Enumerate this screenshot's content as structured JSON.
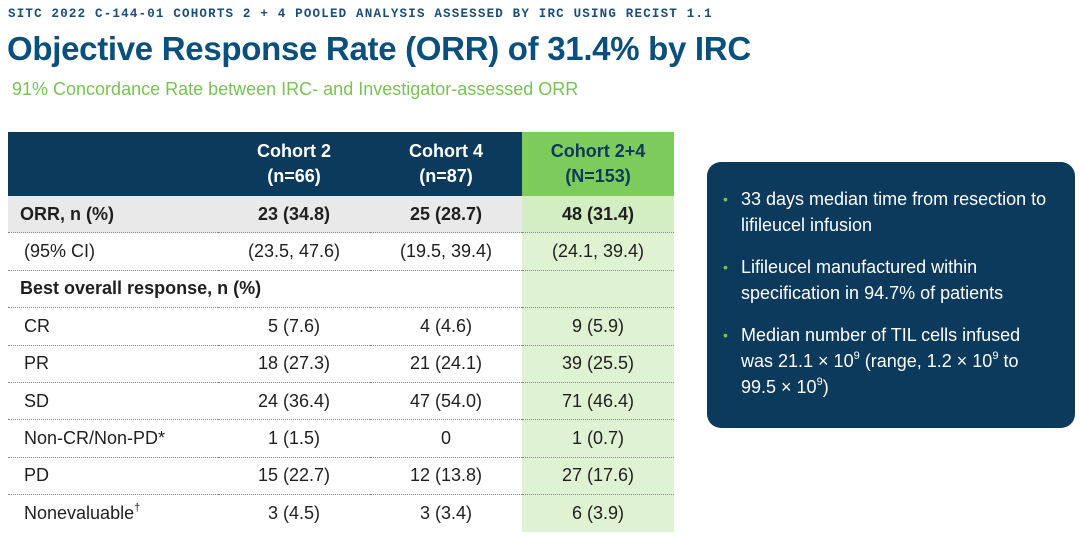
{
  "header": {
    "eyebrow": "SITC 2022 C-144-01 COHORTS 2 + 4 POOLED ANALYSIS ASSESSED BY IRC USING RECIST 1.1",
    "title": "Objective Response Rate (ORR) of 31.4% by IRC",
    "subtitle": "91% Concordance Rate between IRC- and Investigator-assessed ORR"
  },
  "table": {
    "columns": [
      {
        "name": "Cohort 2",
        "n": "(n=66)"
      },
      {
        "name": "Cohort 4",
        "n": "(n=87)"
      },
      {
        "name": "Cohort 2+4",
        "n": "(N=153)"
      }
    ],
    "orr": {
      "label": "ORR, n (%)",
      "values": [
        "23 (34.8)",
        "25 (28.7)",
        "48 (31.4)"
      ]
    },
    "ci": {
      "label": "(95% CI)",
      "values": [
        "(23.5, 47.6)",
        "(19.5, 39.4)",
        "(24.1, 39.4)"
      ]
    },
    "section_label": "Best overall response, n (%)",
    "rows": [
      {
        "label": "CR",
        "values": [
          "5 (7.6)",
          "4 (4.6)",
          "9 (5.9)"
        ]
      },
      {
        "label": "PR",
        "values": [
          "18 (27.3)",
          "21 (24.1)",
          "39 (25.5)"
        ]
      },
      {
        "label": "SD",
        "values": [
          "24 (36.4)",
          "47 (54.0)",
          "71 (46.4)"
        ]
      },
      {
        "label": "Non-CR/Non-PD*",
        "values": [
          "1 (1.5)",
          "0",
          "1 (0.7)"
        ]
      },
      {
        "label": "PD",
        "values": [
          "15 (22.7)",
          "12 (13.8)",
          "27 (17.6)"
        ]
      },
      {
        "label": "Nonevaluable",
        "mark": "†",
        "values": [
          "3 (4.5)",
          "3 (3.4)",
          "6 (3.9)"
        ]
      }
    ]
  },
  "callout": {
    "bullet_glyph": "•",
    "item1": "33 days median time from resection to lifileucel infusion",
    "item2": "Lifileucel manufactured within specification in 94.7% of patients",
    "item3": {
      "part_a": "Median number of TIL cells infused was 21.1 × 10",
      "exp_a": "9",
      "part_b": " (range, 1.2 × 10",
      "exp_b": "9",
      "part_c": " to 99.5 × 10",
      "exp_c": "9",
      "part_d": ")"
    }
  },
  "colors": {
    "navy": "#0c3a5c",
    "title_blue": "#0b4f7c",
    "green": "#79c255",
    "pooled_header": "#7dcc5b",
    "pooled_cell": "#dff3d2"
  }
}
